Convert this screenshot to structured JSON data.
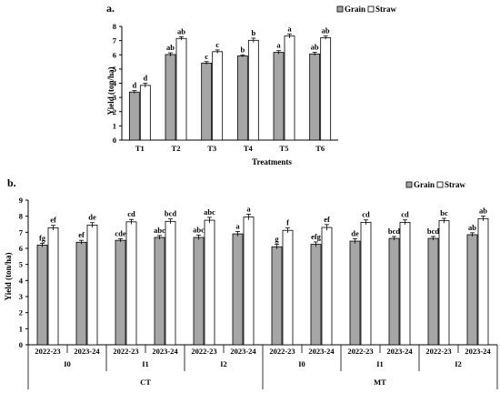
{
  "chart_data": [
    {
      "type": "bar",
      "panel_label": "a.",
      "title": "",
      "xlabel": "Treatments",
      "ylabel": "Yield (ton/ha)",
      "ylim": [
        0,
        8
      ],
      "yticks": [
        0,
        1,
        2,
        3,
        4,
        5,
        6,
        7,
        8
      ],
      "grid": false,
      "legend_position": "top-right",
      "categories": [
        "T1",
        "T2",
        "T3",
        "T4",
        "T5",
        "T6"
      ],
      "series": [
        {
          "name": "Grain",
          "color": "#a6a6a6",
          "values": [
            3.38,
            6.02,
            5.42,
            5.92,
            6.17,
            6.06
          ],
          "errors": [
            0.1,
            0.12,
            0.1,
            0.08,
            0.12,
            0.12
          ],
          "letters": [
            "d",
            "ab",
            "c",
            "b",
            "a",
            "ab"
          ]
        },
        {
          "name": "Straw",
          "color": "#ffffff",
          "values": [
            3.85,
            7.15,
            6.22,
            7.02,
            7.32,
            7.2
          ],
          "errors": [
            0.15,
            0.12,
            0.12,
            0.15,
            0.15,
            0.12
          ],
          "letters": [
            "d",
            "ab",
            "c",
            "b",
            "a",
            "ab"
          ]
        }
      ]
    },
    {
      "type": "bar",
      "panel_label": "b.",
      "title": "",
      "xlabel": "",
      "ylabel": "Yield (ton/ha)",
      "ylim": [
        0,
        9
      ],
      "yticks": [
        0,
        1,
        2,
        3,
        4,
        5,
        6,
        7,
        8,
        9
      ],
      "grid": false,
      "legend_position": "top-right",
      "categories": [
        "2022-23",
        "2023-24",
        "2022-23",
        "2023-24",
        "2022-23",
        "2023-24",
        "2022-23",
        "2023-24",
        "2022-23",
        "2023-24",
        "2022-23",
        "2023-24"
      ],
      "subgroups": [
        "I0",
        "I1",
        "I2",
        "I0",
        "I1",
        "I2"
      ],
      "groups": [
        "CT",
        "MT"
      ],
      "series": [
        {
          "name": "Grain",
          "color": "#a6a6a6",
          "values": [
            6.2,
            6.38,
            6.5,
            6.68,
            6.68,
            6.9,
            6.1,
            6.25,
            6.45,
            6.62,
            6.62,
            6.85
          ],
          "errors": [
            0.12,
            0.12,
            0.1,
            0.12,
            0.15,
            0.15,
            0.15,
            0.15,
            0.15,
            0.12,
            0.12,
            0.12
          ],
          "letters": [
            "fg",
            "ef",
            "cde",
            "abc",
            "abc",
            "a",
            "g",
            "efg",
            "de",
            "bcd",
            "bcd",
            "ab"
          ]
        },
        {
          "name": "Straw",
          "color": "#ffffff",
          "values": [
            7.28,
            7.45,
            7.65,
            7.68,
            7.75,
            7.95,
            7.12,
            7.3,
            7.62,
            7.62,
            7.72,
            7.85
          ],
          "errors": [
            0.15,
            0.15,
            0.15,
            0.15,
            0.18,
            0.18,
            0.15,
            0.18,
            0.15,
            0.15,
            0.15,
            0.15
          ],
          "letters": [
            "ef",
            "de",
            "cd",
            "bcd",
            "abc",
            "a",
            "f",
            "ef",
            "cd",
            "cd",
            "bc",
            "ab"
          ]
        }
      ]
    }
  ]
}
